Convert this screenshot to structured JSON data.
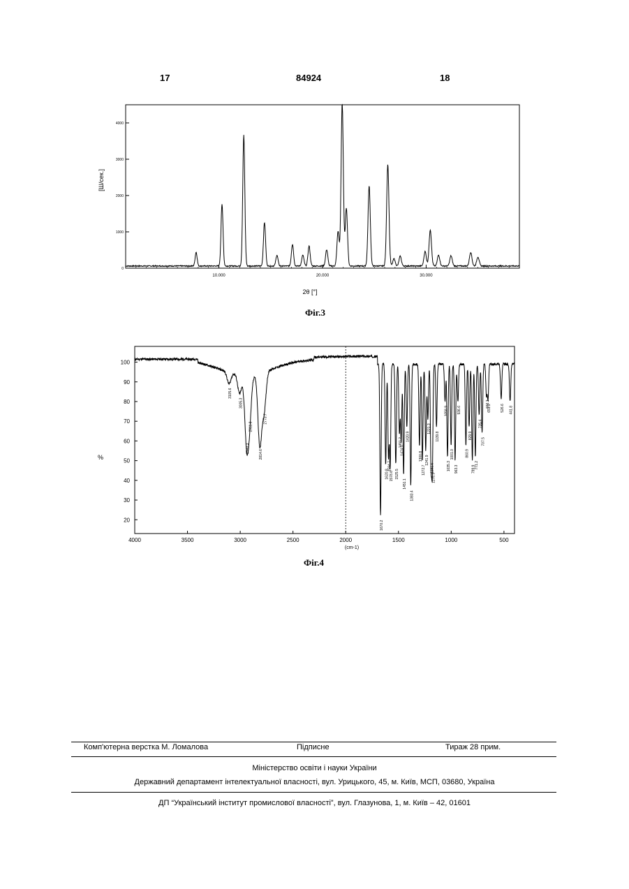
{
  "header": {
    "page_left": "17",
    "doc_number": "84924",
    "page_right": "18"
  },
  "fig3": {
    "caption": "Фіг.3",
    "ylabel": "[Ш/сек.]",
    "xlabel": "2θ [°]",
    "chart_data": {
      "type": "line",
      "xlim": [
        1,
        39
      ],
      "ylim": [
        0,
        4500
      ],
      "xticks": [
        "10.000",
        "20.000",
        "30.000"
      ],
      "yticks": [
        "0",
        "1000",
        "2000",
        "3000",
        "4000"
      ],
      "baseline": 60,
      "peaks": [
        [
          7.8,
          380
        ],
        [
          10.3,
          1700
        ],
        [
          12.4,
          3600
        ],
        [
          14.4,
          1200
        ],
        [
          15.6,
          300
        ],
        [
          17.1,
          600
        ],
        [
          18.1,
          300
        ],
        [
          18.7,
          550
        ],
        [
          20.4,
          450
        ],
        [
          21.5,
          950
        ],
        [
          21.9,
          4500
        ],
        [
          22.3,
          1600
        ],
        [
          24.5,
          2200
        ],
        [
          26.3,
          2800
        ],
        [
          26.9,
          200
        ],
        [
          27.5,
          270
        ],
        [
          29.9,
          400
        ],
        [
          30.4,
          1000
        ],
        [
          31.2,
          300
        ],
        [
          32.4,
          280
        ],
        [
          34.3,
          380
        ],
        [
          35.0,
          250
        ]
      ]
    }
  },
  "fig4": {
    "caption": "Фіг.4",
    "ylabel": "%",
    "xlabel": "(cm-1)",
    "chart_data": {
      "type": "line",
      "xlim": [
        4000,
        400
      ],
      "ylim": [
        13,
        108
      ],
      "xticks": [
        "4000",
        "3500",
        "3000",
        "2500",
        "2000",
        "1500",
        "1000",
        "500"
      ],
      "yticks": [
        "20",
        "30",
        "40",
        "50",
        "60",
        "70",
        "80",
        "90",
        "100"
      ],
      "dips": [
        [
          3105.6,
          89
        ],
        [
          3005.3,
          84
        ],
        [
          2940.3,
          61
        ],
        [
          2911.8,
          72
        ],
        [
          2814.6,
          58
        ],
        [
          2773.7,
          76
        ],
        [
          1670.2,
          22
        ],
        [
          1620.8,
          48
        ],
        [
          1594.7,
          52
        ],
        [
          1578.6,
          47
        ],
        [
          1525.5,
          48
        ],
        [
          1491.2,
          64
        ],
        [
          1474.3,
          60
        ],
        [
          1451.1,
          43
        ],
        [
          1420.9,
          67
        ],
        [
          1383.4,
          37
        ],
        [
          1300.8,
          57
        ],
        [
          1272.7,
          50
        ],
        [
          1241.9,
          55
        ],
        [
          1191.6,
          51
        ],
        [
          1178.9,
          46
        ],
        [
          1221.3,
          71
        ],
        [
          1139.8,
          67
        ],
        [
          1058.9,
          80
        ],
        [
          1035.3,
          52
        ],
        [
          1001.0,
          58
        ],
        [
          963.3,
          50
        ],
        [
          936.6,
          80
        ],
        [
          860.9,
          58
        ],
        [
          829.9,
          67
        ],
        [
          799.9,
          50
        ],
        [
          771.2,
          52
        ],
        [
          735.4,
          73
        ],
        [
          707.5,
          64
        ],
        [
          666.2,
          83
        ],
        [
          651.2,
          81
        ],
        [
          526.6,
          81
        ],
        [
          441.8,
          80
        ]
      ],
      "labels": [
        "3105.6",
        "3005.3",
        "2940.3",
        "2911.8",
        "2814.6",
        "2773.7",
        "1670.2",
        "1620.8",
        "1594.7",
        "1578.6",
        "1525.5",
        "1491.2",
        "1474.3",
        "1451.1",
        "1420.9",
        "1383.4",
        "1300.8",
        "1272.7",
        "1241.9",
        "1191.6",
        "1178.9",
        "1221.3",
        "1139.8",
        "1058.9",
        "1035.3",
        "1001.0",
        "963.3",
        "936.6",
        "860.9",
        "829.9",
        "799.9",
        "771.2",
        "735.4",
        "707.5",
        "666.2",
        "651.2",
        "526.6",
        "441.8"
      ]
    }
  },
  "footer": {
    "layout": "Комп'ютерна верстка М. Ломалова",
    "signed": "Підписне",
    "print_run": "Тираж 28 прим.",
    "ministry": "Міністерство освіти і науки України",
    "department": "Державний департамент інтелектуальної власності, вул. Урицького, 45, м. Київ, МСП, 03680, Україна",
    "institute": "ДП “Український інститут промислової власності”, вул. Глазунова, 1, м. Київ – 42, 01601"
  }
}
